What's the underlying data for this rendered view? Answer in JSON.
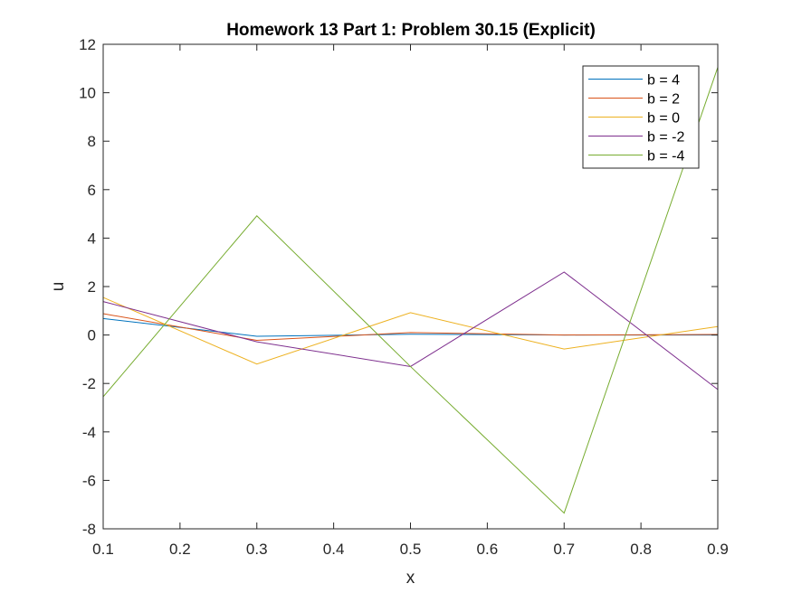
{
  "chart_data": {
    "type": "line",
    "title": "Homework 13 Part 1: Problem 30.15 (Explicit)",
    "xlabel": "x",
    "ylabel": "u",
    "xlim": [
      0.1,
      0.9
    ],
    "ylim": [
      -8,
      12
    ],
    "xticks": [
      0.1,
      0.2,
      0.3,
      0.4,
      0.5,
      0.6,
      0.7,
      0.8,
      0.9
    ],
    "xtick_labels": [
      "0.1",
      "0.2",
      "0.3",
      "0.4",
      "0.5",
      "0.6",
      "0.7",
      "0.8",
      "0.9"
    ],
    "yticks": [
      -8,
      -6,
      -4,
      -2,
      0,
      2,
      4,
      6,
      8,
      10,
      12
    ],
    "ytick_labels": [
      "-8",
      "-6",
      "-4",
      "-2",
      "0",
      "2",
      "4",
      "6",
      "8",
      "10",
      "12"
    ],
    "grid": false,
    "legend_position": "top-right",
    "x": [
      0.1,
      0.3,
      0.5,
      0.7,
      0.9
    ],
    "series": [
      {
        "name": "b = 4",
        "color": "#0072BD",
        "values": [
          0.68,
          -0.05,
          0.03,
          0.0,
          0.0
        ]
      },
      {
        "name": "b = 2",
        "color": "#D95319",
        "values": [
          0.88,
          -0.22,
          0.1,
          0.0,
          0.02
        ]
      },
      {
        "name": "b = 0",
        "color": "#EDB120",
        "values": [
          1.55,
          -1.2,
          0.92,
          -0.58,
          0.35
        ]
      },
      {
        "name": "b = -2",
        "color": "#7E2F8E",
        "values": [
          1.38,
          -0.28,
          -1.3,
          2.6,
          -2.25
        ]
      },
      {
        "name": "b = -4",
        "color": "#77AC30",
        "values": [
          -2.55,
          4.92,
          -1.3,
          -7.35,
          11.05
        ]
      }
    ]
  }
}
